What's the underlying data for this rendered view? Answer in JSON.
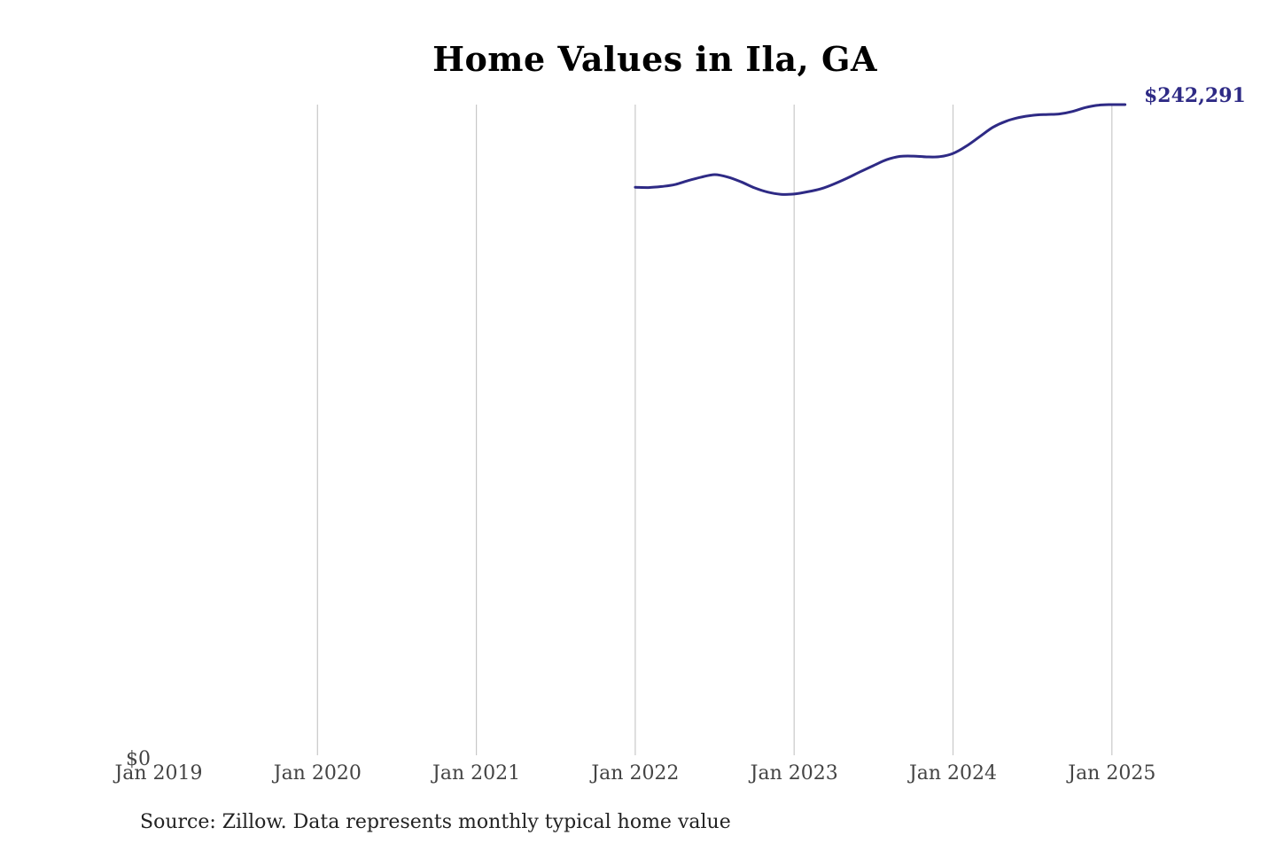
{
  "chart_data": {
    "type": "line",
    "title": "Home Values in Ila, GA",
    "xlabel": "",
    "ylabel": "",
    "x_tick_labels": [
      "Jan 2019",
      "Jan 2020",
      "Jan 2021",
      "Jan 2022",
      "Jan 2023",
      "Jan 2024",
      "Jan 2025"
    ],
    "y_tick_labels": [
      "$0"
    ],
    "ylim": [
      0,
      242291
    ],
    "xlim": [
      "2019-01",
      "2025-02"
    ],
    "grid": "vertical",
    "line_color": "#2e2a85",
    "grid_color": "#c8c8c8",
    "end_label": "$242,291",
    "series": [
      {
        "x": [
          "2022-01",
          "2022-02",
          "2022-03",
          "2022-04",
          "2022-05",
          "2022-06",
          "2022-07",
          "2022-08",
          "2022-09",
          "2022-10",
          "2022-11",
          "2022-12",
          "2023-01",
          "2023-02",
          "2023-03",
          "2023-04",
          "2023-05",
          "2023-06",
          "2023-07",
          "2023-08",
          "2023-09",
          "2023-10",
          "2023-11",
          "2023-12",
          "2024-01",
          "2024-02",
          "2024-03",
          "2024-04",
          "2024-05",
          "2024-06",
          "2024-07",
          "2024-08",
          "2024-09",
          "2024-10",
          "2024-11",
          "2024-12",
          "2025-01",
          "2025-02"
        ],
        "values": [
          211500,
          211400,
          211800,
          212500,
          214000,
          215300,
          216200,
          215300,
          213500,
          211300,
          209700,
          208900,
          209000,
          209800,
          210900,
          212700,
          214900,
          217300,
          219600,
          221800,
          223000,
          223100,
          222800,
          222900,
          224100,
          226800,
          230300,
          233800,
          236100,
          237500,
          238300,
          238600,
          238800,
          239700,
          241200,
          242100,
          242291,
          242291
        ]
      }
    ]
  },
  "source": "Source: Zillow. Data represents monthly typical home value"
}
